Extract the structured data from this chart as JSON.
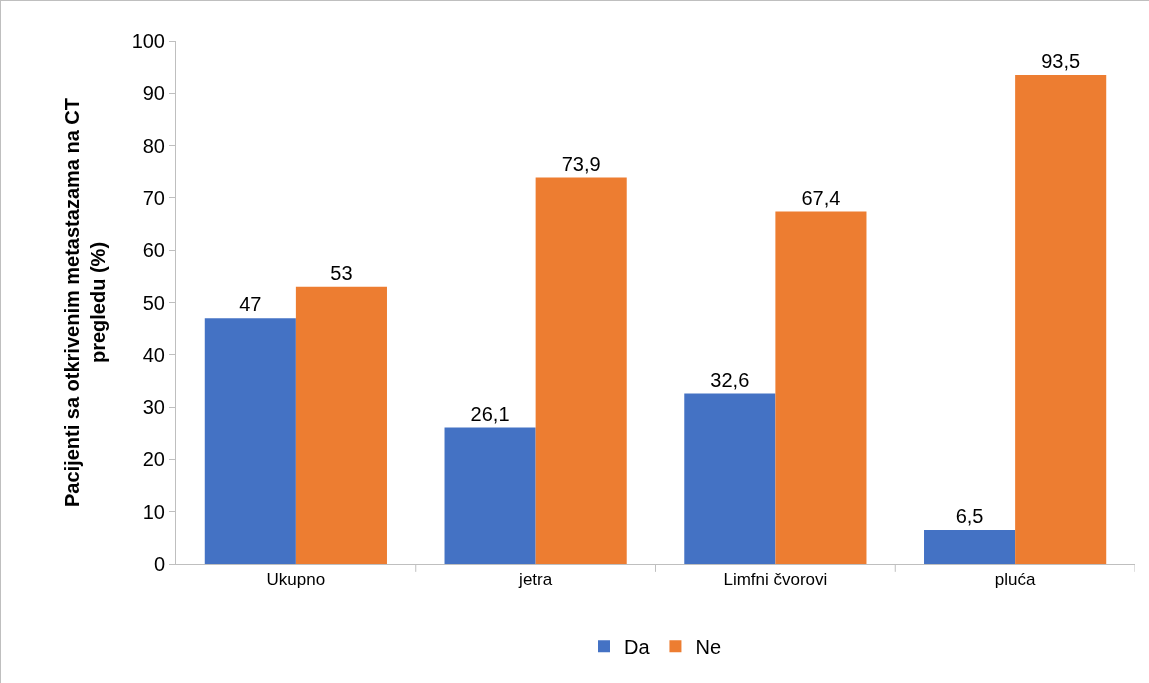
{
  "chart_data": {
    "type": "bar",
    "ylabel": "Pacijenti sa otkrivenim metastazama na CT pregledu (%)",
    "categories": [
      "Ukupno",
      "jetra",
      "Limfni čvorovi",
      "pluća"
    ],
    "series": [
      {
        "name": "Da",
        "color": "#4472c4",
        "values": [
          47,
          26.1,
          32.6,
          6.5
        ],
        "value_labels": [
          "47",
          "26,1",
          "32,6",
          "6,5"
        ]
      },
      {
        "name": "Ne",
        "color": "#ed7d31",
        "values": [
          53,
          73.9,
          67.4,
          93.5
        ],
        "value_labels": [
          "53",
          "73,9",
          "67,4",
          "93,5"
        ]
      }
    ],
    "ylim": [
      0,
      100
    ],
    "yticks": [
      0,
      10,
      20,
      30,
      40,
      50,
      60,
      70,
      80,
      90,
      100
    ],
    "grid": false,
    "legend": "bottom"
  }
}
